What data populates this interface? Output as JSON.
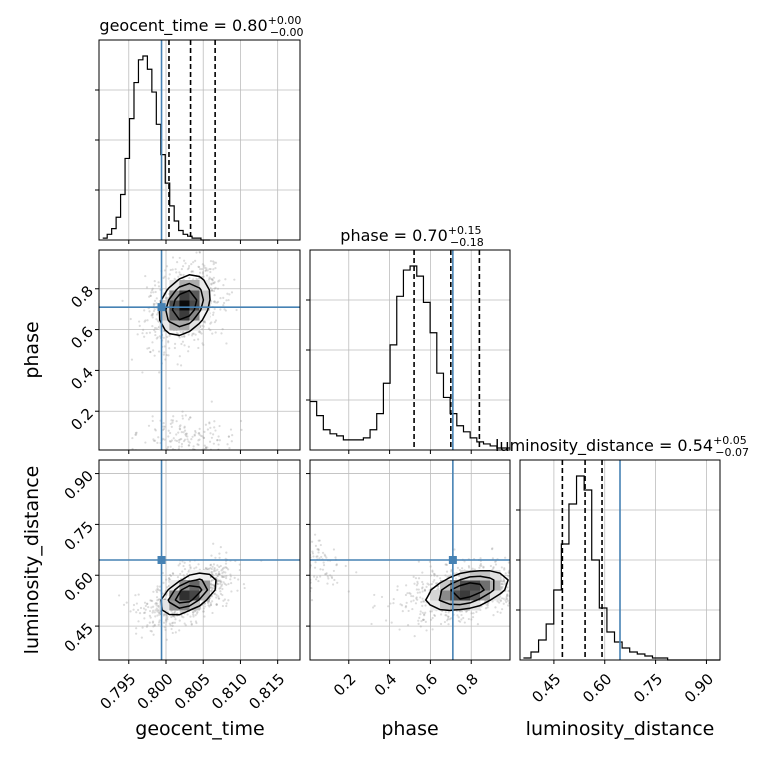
{
  "chart_data": {
    "type": "corner",
    "truth_color": "#4682b4",
    "parameters": [
      {
        "name": "geocent_time",
        "label": "geocent_time",
        "median": "0.80",
        "plus": "+0.00",
        "minus": "−0.00",
        "range": [
          0.791,
          0.818
        ],
        "ticks": [
          0.795,
          0.8,
          0.805,
          0.81,
          0.815
        ],
        "tick_labels": [
          "0.795",
          "0.800",
          "0.805",
          "0.810",
          "0.815"
        ],
        "truth": 0.7994,
        "quantiles": [
          0.8004,
          0.8033,
          0.8066
        ],
        "hist_edges_start": 0.7915,
        "hist_bin_width": 0.0006,
        "hist": [
          1,
          3,
          6,
          12,
          24,
          43,
          64,
          83,
          95,
          97,
          90,
          78,
          61,
          45,
          30,
          18,
          10,
          5,
          3,
          2,
          1,
          1,
          0,
          0
        ]
      },
      {
        "name": "phase",
        "label": "phase",
        "median": "0.70",
        "plus": "+0.15",
        "minus": "−0.18",
        "range": [
          0.01,
          0.99
        ],
        "ticks": [
          0.2,
          0.4,
          0.6,
          0.8
        ],
        "tick_labels": [
          "0.2",
          "0.4",
          "0.6",
          "0.8"
        ],
        "truth": 0.71,
        "quantiles": [
          0.52,
          0.7,
          0.84
        ],
        "hist_edges_start": 0.01,
        "hist_bin_width": 0.0327,
        "hist": [
          24,
          17,
          10,
          8,
          7,
          5,
          5,
          5,
          6,
          10,
          18,
          33,
          52,
          76,
          89,
          91,
          86,
          73,
          58,
          38,
          26,
          18,
          12,
          9,
          6,
          4,
          3,
          2,
          1,
          1
        ]
      },
      {
        "name": "luminosity_distance",
        "label": "luminosity_distance",
        "median": "0.54",
        "plus": "+0.05",
        "minus": "−0.07",
        "range": [
          0.35,
          0.94
        ],
        "ticks": [
          0.45,
          0.6,
          0.75,
          0.9
        ],
        "tick_labels": [
          "0.45",
          "0.60",
          "0.75",
          "0.90"
        ],
        "truth": 0.645,
        "quantiles": [
          0.475,
          0.542,
          0.592
        ],
        "hist_edges_start": 0.36,
        "hist_bin_width": 0.0224,
        "hist": [
          1,
          4,
          10,
          18,
          35,
          58,
          78,
          92,
          85,
          50,
          26,
          14,
          9,
          6,
          4,
          3,
          2,
          1,
          1,
          0,
          0,
          0,
          0,
          0,
          0,
          0
        ]
      }
    ],
    "joint_2d": [
      {
        "x": "geocent_time",
        "y": "phase",
        "peaks": [
          {
            "x": 0.8025,
            "y": 0.72,
            "sx": 0.002,
            "sy": 0.085,
            "rho": 0.3,
            "w": 0.82
          },
          {
            "x": 0.8025,
            "y": 0.06,
            "sx": 0.0025,
            "sy": 0.05,
            "rho": 0.0,
            "w": 0.18
          }
        ],
        "contour_levels": [
          0.25,
          0.5,
          0.75
        ]
      },
      {
        "x": "geocent_time",
        "y": "luminosity_distance",
        "peaks": [
          {
            "x": 0.803,
            "y": 0.545,
            "sx": 0.0022,
            "sy": 0.035,
            "rho": 0.55,
            "w": 1.0
          }
        ],
        "contour_levels": [
          0.25,
          0.5,
          0.75
        ]
      },
      {
        "x": "phase",
        "y": "luminosity_distance",
        "peaks": [
          {
            "x": 0.78,
            "y": 0.555,
            "sx": 0.12,
            "sy": 0.035,
            "rho": 0.45,
            "w": 0.88
          },
          {
            "x": 0.03,
            "y": 0.63,
            "sx": 0.05,
            "sy": 0.03,
            "rho": 0.0,
            "w": 0.12
          }
        ],
        "contour_levels": [
          0.25,
          0.5,
          0.75
        ]
      }
    ]
  }
}
